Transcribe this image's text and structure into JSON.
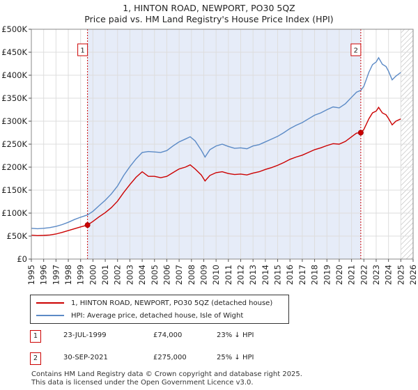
{
  "chart_data": {
    "type": "line",
    "title": "1, HINTON ROAD, NEWPORT, PO30 5QZ",
    "subtitle": "Price paid vs. HM Land Registry's House Price Index (HPI)",
    "xlim": [
      1995,
      2026
    ],
    "ylim": [
      0,
      500000
    ],
    "x_ticks": [
      "1995",
      "1996",
      "1997",
      "1998",
      "1999",
      "2000",
      "2001",
      "2002",
      "2003",
      "2004",
      "2005",
      "2006",
      "2007",
      "2008",
      "2009",
      "2010",
      "2011",
      "2012",
      "2013",
      "2014",
      "2015",
      "2016",
      "2017",
      "2018",
      "2019",
      "2020",
      "2021",
      "2022",
      "2023",
      "2024",
      "2025",
      "2026"
    ],
    "y_ticks": [
      {
        "value": 0,
        "label": "£0"
      },
      {
        "value": 50000,
        "label": "£50K"
      },
      {
        "value": 100000,
        "label": "£100K"
      },
      {
        "value": 150000,
        "label": "£150K"
      },
      {
        "value": 200000,
        "label": "£200K"
      },
      {
        "value": 250000,
        "label": "£250K"
      },
      {
        "value": 300000,
        "label": "£300K"
      },
      {
        "value": 350000,
        "label": "£350K"
      },
      {
        "value": 400000,
        "label": "£400K"
      },
      {
        "value": 450000,
        "label": "£450K"
      },
      {
        "value": 500000,
        "label": "£500K"
      }
    ],
    "shaded_region": [
      1999.56,
      2021.75
    ],
    "forecast_hatch_from": 2025.0,
    "series": [
      {
        "name": "1, HINTON ROAD, NEWPORT, PO30 5QZ (detached house)",
        "color": "#cc0000",
        "points": [
          [
            1995,
            52000
          ],
          [
            1995.5,
            51000
          ],
          [
            1996,
            51500
          ],
          [
            1996.5,
            52500
          ],
          [
            1997,
            54500
          ],
          [
            1997.5,
            58000
          ],
          [
            1998,
            62000
          ],
          [
            1998.5,
            66000
          ],
          [
            1999,
            70000
          ],
          [
            1999.56,
            74000
          ],
          [
            2000,
            82000
          ],
          [
            2000.5,
            92000
          ],
          [
            2001,
            101000
          ],
          [
            2001.5,
            112000
          ],
          [
            2002,
            126000
          ],
          [
            2002.5,
            145000
          ],
          [
            2003,
            162000
          ],
          [
            2003.5,
            178000
          ],
          [
            2004,
            190000
          ],
          [
            2004.5,
            180000
          ],
          [
            2005,
            180000
          ],
          [
            2005.5,
            177000
          ],
          [
            2006,
            180000
          ],
          [
            2006.5,
            188000
          ],
          [
            2007,
            196000
          ],
          [
            2007.5,
            200000
          ],
          [
            2007.9,
            205000
          ],
          [
            2008.3,
            196000
          ],
          [
            2008.8,
            183000
          ],
          [
            2009.1,
            170000
          ],
          [
            2009.5,
            182000
          ],
          [
            2010,
            188000
          ],
          [
            2010.5,
            190000
          ],
          [
            2011,
            186000
          ],
          [
            2011.5,
            184000
          ],
          [
            2012,
            185000
          ],
          [
            2012.5,
            183000
          ],
          [
            2013,
            187000
          ],
          [
            2013.5,
            190000
          ],
          [
            2014,
            195000
          ],
          [
            2014.5,
            199000
          ],
          [
            2015,
            204000
          ],
          [
            2015.5,
            210000
          ],
          [
            2016,
            217000
          ],
          [
            2016.5,
            222000
          ],
          [
            2017,
            226000
          ],
          [
            2017.5,
            232000
          ],
          [
            2018,
            238000
          ],
          [
            2018.5,
            242000
          ],
          [
            2019,
            247000
          ],
          [
            2019.5,
            251000
          ],
          [
            2020,
            250000
          ],
          [
            2020.5,
            256000
          ],
          [
            2021,
            266000
          ],
          [
            2021.4,
            274000
          ],
          [
            2021.75,
            275000
          ],
          [
            2022,
            282000
          ],
          [
            2022.4,
            305000
          ],
          [
            2022.7,
            318000
          ],
          [
            2023,
            322000
          ],
          [
            2023.2,
            330000
          ],
          [
            2023.5,
            318000
          ],
          [
            2023.8,
            314000
          ],
          [
            2024,
            306000
          ],
          [
            2024.3,
            292000
          ],
          [
            2024.6,
            300000
          ],
          [
            2025,
            305000
          ]
        ]
      },
      {
        "name": "HPI: Average price, detached house, Isle of Wight",
        "color": "#5b8ac6",
        "points": [
          [
            1995,
            67000
          ],
          [
            1995.5,
            66000
          ],
          [
            1996,
            67000
          ],
          [
            1996.5,
            68500
          ],
          [
            1997,
            71000
          ],
          [
            1997.5,
            75000
          ],
          [
            1998,
            80000
          ],
          [
            1998.5,
            86000
          ],
          [
            1999,
            91000
          ],
          [
            1999.56,
            96000
          ],
          [
            2000,
            104000
          ],
          [
            2000.5,
            116000
          ],
          [
            2001,
            128000
          ],
          [
            2001.5,
            142000
          ],
          [
            2002,
            159000
          ],
          [
            2002.5,
            182000
          ],
          [
            2003,
            201000
          ],
          [
            2003.5,
            218000
          ],
          [
            2004,
            232000
          ],
          [
            2004.5,
            234000
          ],
          [
            2005,
            233000
          ],
          [
            2005.5,
            232000
          ],
          [
            2006,
            236000
          ],
          [
            2006.5,
            246000
          ],
          [
            2007,
            255000
          ],
          [
            2007.5,
            261000
          ],
          [
            2007.9,
            266000
          ],
          [
            2008.3,
            257000
          ],
          [
            2008.8,
            237000
          ],
          [
            2009.1,
            222000
          ],
          [
            2009.5,
            238000
          ],
          [
            2010,
            246000
          ],
          [
            2010.5,
            250000
          ],
          [
            2011,
            245000
          ],
          [
            2011.5,
            241000
          ],
          [
            2012,
            242000
          ],
          [
            2012.5,
            240000
          ],
          [
            2013,
            246000
          ],
          [
            2013.5,
            249000
          ],
          [
            2014,
            255000
          ],
          [
            2014.5,
            261000
          ],
          [
            2015,
            267000
          ],
          [
            2015.5,
            275000
          ],
          [
            2016,
            284000
          ],
          [
            2016.5,
            291000
          ],
          [
            2017,
            297000
          ],
          [
            2017.5,
            305000
          ],
          [
            2018,
            313000
          ],
          [
            2018.5,
            318000
          ],
          [
            2019,
            325000
          ],
          [
            2019.5,
            331000
          ],
          [
            2020,
            329000
          ],
          [
            2020.5,
            338000
          ],
          [
            2021,
            352000
          ],
          [
            2021.4,
            363000
          ],
          [
            2021.75,
            367000
          ],
          [
            2022,
            376000
          ],
          [
            2022.4,
            406000
          ],
          [
            2022.7,
            423000
          ],
          [
            2023,
            429000
          ],
          [
            2023.2,
            438000
          ],
          [
            2023.5,
            424000
          ],
          [
            2023.8,
            419000
          ],
          [
            2024,
            409000
          ],
          [
            2024.3,
            390000
          ],
          [
            2024.6,
            398000
          ],
          [
            2025,
            406000
          ]
        ]
      }
    ],
    "annotations": [
      {
        "label": "1",
        "x": 1999.56,
        "y": 74000
      },
      {
        "label": "2",
        "x": 2021.75,
        "y": 275000
      }
    ]
  },
  "legend": {
    "items": [
      {
        "label": "1, HINTON ROAD, NEWPORT, PO30 5QZ (detached house)",
        "color": "#cc0000"
      },
      {
        "label": "HPI: Average price, detached house, Isle of Wight",
        "color": "#5b8ac6"
      }
    ]
  },
  "transactions": [
    {
      "num": "1",
      "date": "23-JUL-1999",
      "price": "£74,000",
      "hpi": "23% ↓ HPI"
    },
    {
      "num": "2",
      "date": "30-SEP-2021",
      "price": "£275,000",
      "hpi": "25% ↓ HPI"
    }
  ],
  "footer": {
    "line1": "Contains HM Land Registry data © Crown copyright and database right 2025.",
    "line2": "This data is licensed under the Open Government Licence v3.0."
  }
}
